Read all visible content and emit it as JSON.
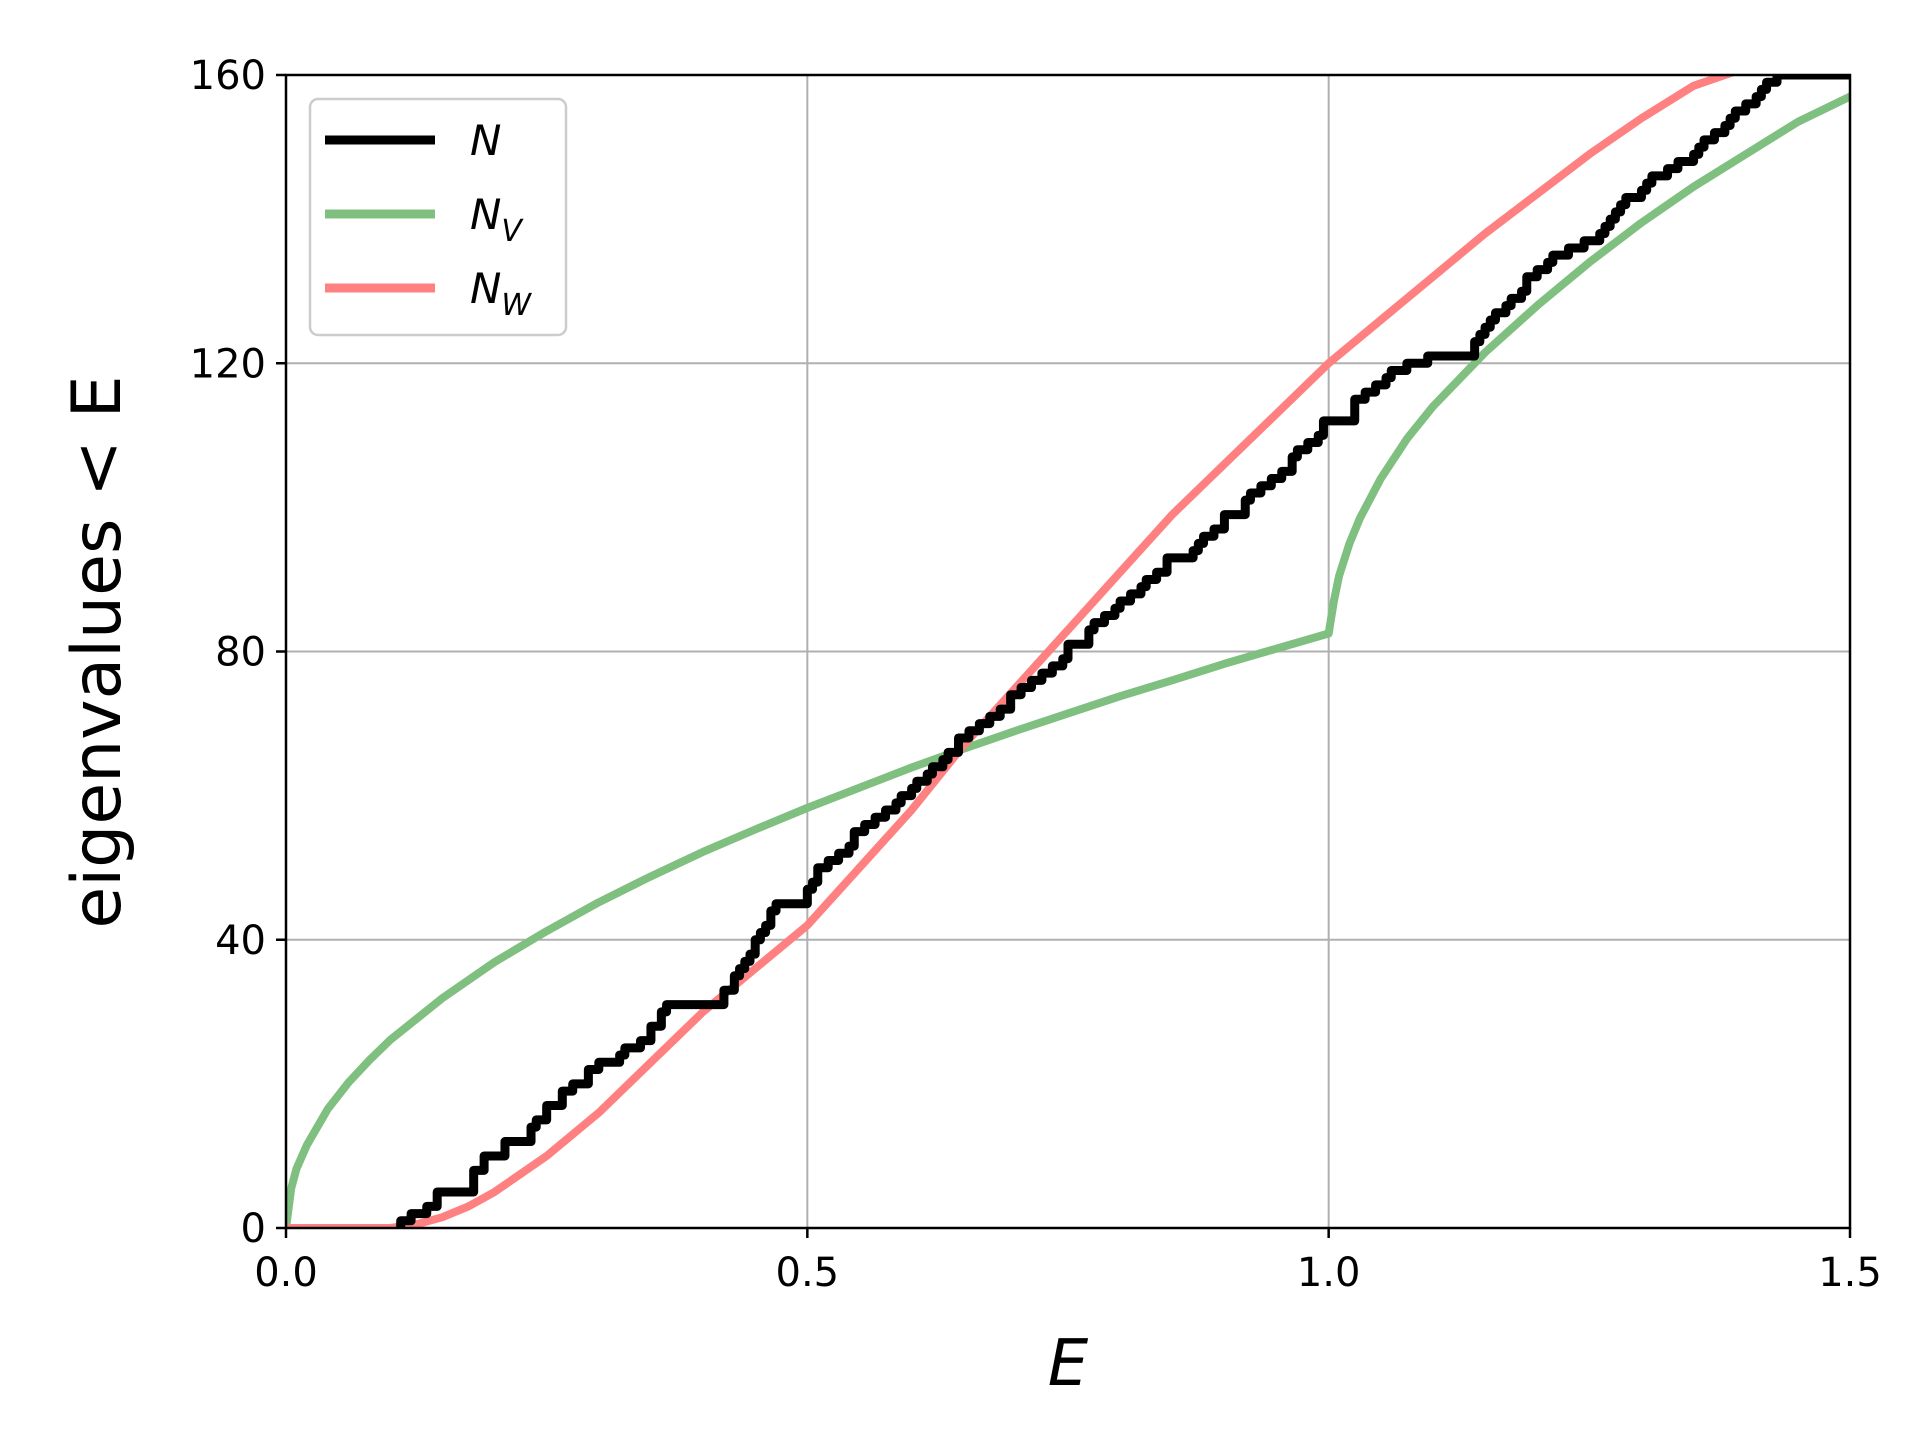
{
  "chart_data": {
    "type": "line",
    "title": "",
    "xlabel": "E",
    "ylabel": "eigenvalues < E",
    "xlim": [
      0,
      1.5
    ],
    "ylim": [
      0,
      160
    ],
    "xticks": [
      0.0,
      0.5,
      1.0,
      1.5
    ],
    "xtick_labels": [
      "0.0",
      "0.5",
      "1.0",
      "1.5"
    ],
    "yticks": [
      0,
      40,
      80,
      120,
      160
    ],
    "ytick_labels": [
      "0",
      "40",
      "80",
      "120",
      "160"
    ],
    "grid": true,
    "legend_position": "top-left",
    "series": [
      {
        "name": "N",
        "name_base": "N",
        "name_sub": "",
        "color": "#000000",
        "style": "step",
        "x": [
          0.11,
          0.12,
          0.135,
          0.145,
          0.18,
          0.19,
          0.21,
          0.235,
          0.24,
          0.25,
          0.265,
          0.275,
          0.29,
          0.3,
          0.32,
          0.325,
          0.34,
          0.35,
          0.36,
          0.365,
          0.37,
          0.38,
          0.42,
          0.43,
          0.435,
          0.44,
          0.445,
          0.45,
          0.455,
          0.46,
          0.465,
          0.47,
          0.5,
          0.505,
          0.51,
          0.52,
          0.53,
          0.54,
          0.545,
          0.555,
          0.565,
          0.575,
          0.585,
          0.59,
          0.6,
          0.605,
          0.615,
          0.62,
          0.63,
          0.635,
          0.645,
          0.655,
          0.665,
          0.675,
          0.685,
          0.695,
          0.705,
          0.715,
          0.725,
          0.735,
          0.745,
          0.75,
          0.77,
          0.775,
          0.785,
          0.795,
          0.8,
          0.81,
          0.82,
          0.825,
          0.835,
          0.845,
          0.87,
          0.875,
          0.88,
          0.89,
          0.9,
          0.92,
          0.925,
          0.935,
          0.945,
          0.955,
          0.965,
          0.97,
          0.98,
          0.99,
          0.995,
          1.025,
          1.035,
          1.045,
          1.055,
          1.06,
          1.075,
          1.08,
          1.095,
          1.14,
          1.145,
          1.15,
          1.155,
          1.16,
          1.17,
          1.175,
          1.185,
          1.19,
          1.2,
          1.21,
          1.215,
          1.23,
          1.245,
          1.26,
          1.265,
          1.27,
          1.275,
          1.28,
          1.285,
          1.3,
          1.305,
          1.31,
          1.325,
          1.335,
          1.35,
          1.355,
          1.36,
          1.37,
          1.38,
          1.385,
          1.39,
          1.4,
          1.41,
          1.415,
          1.42,
          1.43,
          1.435,
          1.44,
          1.445,
          1.45,
          1.455,
          1.46,
          1.465,
          1.47,
          1.475,
          1.48,
          1.49,
          1.5
        ],
        "values": [
          1,
          2,
          3,
          5,
          8,
          10,
          12,
          14,
          15,
          17,
          19,
          20,
          22,
          23,
          24,
          25,
          26,
          28,
          30,
          31,
          31,
          31,
          33,
          35,
          36,
          37,
          38,
          40,
          41,
          42,
          44,
          45,
          47,
          48,
          50,
          51,
          52,
          53,
          55,
          56,
          57,
          58,
          59,
          60,
          61,
          62,
          63,
          64,
          65,
          66,
          68,
          69,
          70,
          71,
          72,
          74,
          75,
          76,
          77,
          78,
          79,
          81,
          83,
          84,
          85,
          86,
          87,
          88,
          89,
          90,
          91,
          93,
          94,
          95,
          96,
          97,
          99,
          101,
          102,
          103,
          104,
          105,
          107,
          108,
          109,
          110,
          112,
          115,
          116,
          117,
          118,
          119,
          120,
          120,
          121,
          123,
          124,
          125,
          126,
          127,
          128,
          129,
          130,
          132,
          133,
          134,
          135,
          136,
          137,
          138,
          139,
          140,
          141,
          142,
          143,
          144,
          145,
          146,
          147,
          148,
          149,
          150,
          151,
          152,
          153,
          154,
          155,
          156,
          157,
          158,
          159,
          160,
          160,
          160,
          160,
          160,
          160,
          160,
          160,
          160,
          160,
          160,
          160,
          160
        ]
      },
      {
        "name": "N_V",
        "name_base": "N",
        "name_sub": "V",
        "color": "#7fbf7f",
        "style": "line",
        "x": [
          0,
          0.005,
          0.01,
          0.02,
          0.04,
          0.06,
          0.08,
          0.1,
          0.15,
          0.2,
          0.25,
          0.3,
          0.35,
          0.4,
          0.45,
          0.5,
          0.55,
          0.6,
          0.65,
          0.7,
          0.75,
          0.8,
          0.85,
          0.9,
          0.95,
          1.0,
          1.005,
          1.01,
          1.02,
          1.03,
          1.05,
          1.075,
          1.1,
          1.15,
          1.2,
          1.25,
          1.3,
          1.35,
          1.4,
          1.45,
          1.5
        ],
        "values": [
          0,
          5.5,
          8.2,
          11.5,
          16.5,
          20.2,
          23.3,
          26.1,
          31.9,
          36.9,
          41.2,
          45.2,
          48.8,
          52.2,
          55.3,
          58.3,
          61.1,
          63.9,
          66.5,
          69.0,
          71.4,
          73.8,
          76.0,
          78.3,
          80.4,
          82.5,
          87.0,
          90.5,
          95.0,
          98.5,
          104.0,
          109.5,
          114.0,
          121.5,
          128.0,
          134.0,
          139.5,
          144.5,
          149.0,
          153.5,
          157.0
        ]
      },
      {
        "name": "N_W",
        "name_base": "N",
        "name_sub": "W",
        "color": "#ff8080",
        "style": "line",
        "x": [
          0,
          0.05,
          0.1,
          0.125,
          0.15,
          0.175,
          0.2,
          0.225,
          0.25,
          0.275,
          0.3,
          0.35,
          0.4,
          0.45,
          0.5,
          0.55,
          0.6,
          0.65,
          0.7,
          0.75,
          0.8,
          0.85,
          0.9,
          0.95,
          1.0,
          1.05,
          1.1,
          1.15,
          1.2,
          1.25,
          1.3,
          1.35,
          1.4,
          1.425
        ],
        "values": [
          0,
          0,
          0,
          0.5,
          1.5,
          3.0,
          5.0,
          7.5,
          10.0,
          13.0,
          16.0,
          23.0,
          30.0,
          36.0,
          42.0,
          50.0,
          58.0,
          67.0,
          75.0,
          83.0,
          91.0,
          99.0,
          106.0,
          113.0,
          120.0,
          126.0,
          132.0,
          138.0,
          143.5,
          149.0,
          154.0,
          158.5,
          161.0,
          162.0
        ]
      }
    ]
  }
}
